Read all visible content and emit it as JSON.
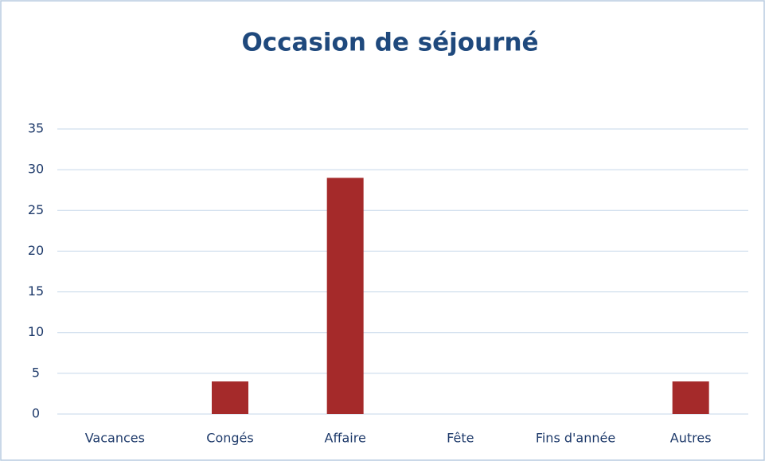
{
  "chart_data": {
    "type": "bar",
    "title": "Occasion de séjourné",
    "categories": [
      "Vacances",
      "Congés",
      "Affaire",
      "Fête",
      "Fins d'année",
      "Autres"
    ],
    "values": [
      0,
      4,
      29,
      0,
      0,
      4
    ],
    "color": "#a52a2a",
    "ylim": [
      0,
      35
    ],
    "yticks": [
      0,
      5,
      10,
      15,
      20,
      25,
      30,
      35
    ],
    "grid": true
  }
}
